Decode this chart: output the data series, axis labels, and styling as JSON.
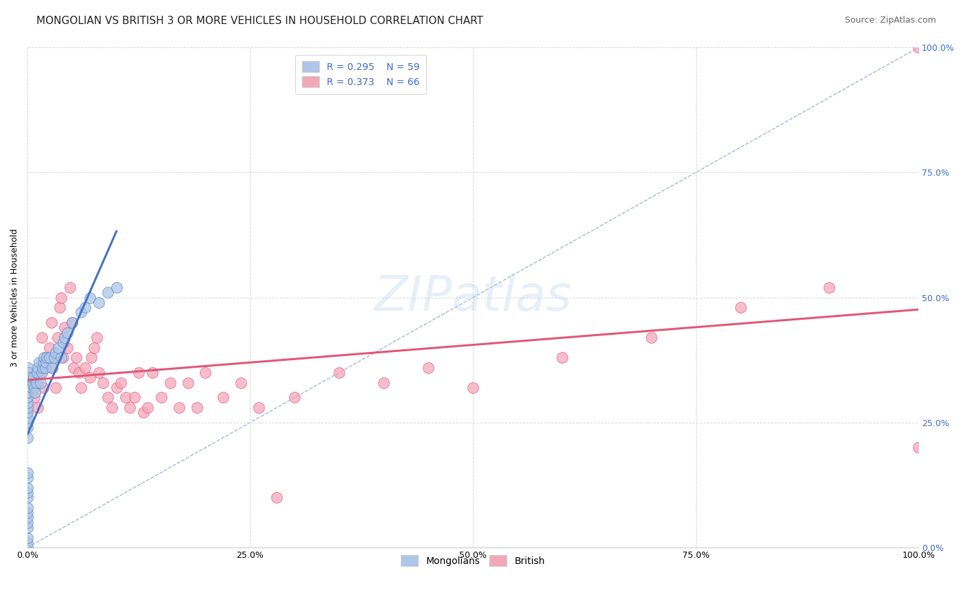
{
  "title": "MONGOLIAN VS BRITISH 3 OR MORE VEHICLES IN HOUSEHOLD CORRELATION CHART",
  "source": "Source: ZipAtlas.com",
  "ylabel": "3 or more Vehicles in Household",
  "xlim": [
    0.0,
    1.0
  ],
  "ylim": [
    0.0,
    1.0
  ],
  "xticks": [
    0.0,
    0.25,
    0.5,
    0.75,
    1.0
  ],
  "yticks": [
    0.0,
    0.25,
    0.5,
    0.75,
    1.0
  ],
  "xticklabels": [
    "0.0%",
    "25.0%",
    "50.0%",
    "75.0%",
    "100.0%"
  ],
  "yticklabels_right": [
    "0.0%",
    "25.0%",
    "50.0%",
    "75.0%",
    "100.0%"
  ],
  "legend_R_mongolian": "R = 0.295",
  "legend_N_mongolian": "N = 59",
  "legend_R_british": "R = 0.373",
  "legend_N_british": "N = 66",
  "mongolian_color": "#aec6e8",
  "british_color": "#f4a7b9",
  "mongolian_edge_color": "#5b8cc8",
  "british_edge_color": "#e8608a",
  "mongolian_line_color": "#4472c4",
  "british_line_color": "#e05878",
  "diagonal_color": "#9ab0d0",
  "background_color": "#ffffff",
  "grid_color": "#d8d8d8",
  "watermark": "ZIPatlas",
  "mongolian_x": [
    0.0,
    0.0,
    0.0,
    0.0,
    0.0,
    0.0,
    0.0,
    0.0,
    0.0,
    0.0,
    0.0,
    0.0,
    0.0,
    0.0,
    0.0,
    0.0,
    0.0,
    0.0,
    0.0,
    0.0,
    0.0,
    0.0,
    0.0,
    0.001,
    0.002,
    0.003,
    0.005,
    0.006,
    0.007,
    0.008,
    0.009,
    0.01,
    0.011,
    0.012,
    0.013,
    0.015,
    0.016,
    0.017,
    0.018,
    0.019,
    0.02,
    0.021,
    0.022,
    0.025,
    0.028,
    0.03,
    0.032,
    0.035,
    0.038,
    0.04,
    0.042,
    0.045,
    0.05,
    0.06,
    0.065,
    0.07,
    0.08,
    0.09,
    0.1
  ],
  "mongolian_y": [
    0.0,
    0.01,
    0.02,
    0.04,
    0.05,
    0.06,
    0.07,
    0.08,
    0.1,
    0.11,
    0.12,
    0.14,
    0.15,
    0.22,
    0.24,
    0.25,
    0.26,
    0.27,
    0.28,
    0.29,
    0.3,
    0.31,
    0.33,
    0.36,
    0.35,
    0.34,
    0.32,
    0.33,
    0.34,
    0.32,
    0.31,
    0.33,
    0.35,
    0.36,
    0.37,
    0.33,
    0.35,
    0.36,
    0.37,
    0.38,
    0.36,
    0.37,
    0.38,
    0.38,
    0.36,
    0.38,
    0.39,
    0.4,
    0.38,
    0.41,
    0.42,
    0.43,
    0.45,
    0.47,
    0.48,
    0.5,
    0.49,
    0.51,
    0.52
  ],
  "british_x": [
    0.0,
    0.005,
    0.008,
    0.01,
    0.012,
    0.015,
    0.016,
    0.018,
    0.02,
    0.022,
    0.025,
    0.027,
    0.028,
    0.03,
    0.032,
    0.034,
    0.036,
    0.038,
    0.04,
    0.042,
    0.045,
    0.048,
    0.05,
    0.052,
    0.055,
    0.058,
    0.06,
    0.065,
    0.07,
    0.072,
    0.075,
    0.078,
    0.08,
    0.085,
    0.09,
    0.095,
    0.1,
    0.105,
    0.11,
    0.115,
    0.12,
    0.125,
    0.13,
    0.135,
    0.14,
    0.15,
    0.16,
    0.17,
    0.18,
    0.19,
    0.2,
    0.22,
    0.24,
    0.26,
    0.28,
    0.3,
    0.35,
    0.4,
    0.45,
    0.5,
    0.6,
    0.7,
    0.8,
    0.9,
    1.0,
    1.0
  ],
  "british_y": [
    0.27,
    0.34,
    0.3,
    0.33,
    0.28,
    0.35,
    0.42,
    0.32,
    0.36,
    0.38,
    0.4,
    0.45,
    0.36,
    0.38,
    0.32,
    0.42,
    0.48,
    0.5,
    0.38,
    0.44,
    0.4,
    0.52,
    0.45,
    0.36,
    0.38,
    0.35,
    0.32,
    0.36,
    0.34,
    0.38,
    0.4,
    0.42,
    0.35,
    0.33,
    0.3,
    0.28,
    0.32,
    0.33,
    0.3,
    0.28,
    0.3,
    0.35,
    0.27,
    0.28,
    0.35,
    0.3,
    0.33,
    0.28,
    0.33,
    0.28,
    0.35,
    0.3,
    0.33,
    0.28,
    0.1,
    0.3,
    0.35,
    0.33,
    0.36,
    0.32,
    0.38,
    0.42,
    0.48,
    0.52,
    1.0,
    0.2
  ],
  "title_fontsize": 11,
  "source_fontsize": 9,
  "axis_label_fontsize": 9,
  "tick_fontsize": 9,
  "legend_fontsize": 10
}
